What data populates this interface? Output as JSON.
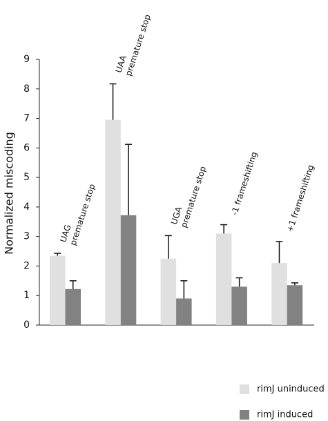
{
  "chart_data": {
    "type": "bar",
    "ylabel": "Normalized miscoding",
    "categories": [
      [
        "UAG",
        "premature stop"
      ],
      [
        "UAA",
        "premature stop"
      ],
      [
        "UGA",
        "premature stop"
      ],
      [
        "-1 frameshifting"
      ],
      [
        "+1 frameshifting"
      ]
    ],
    "series": [
      {
        "name": "rimJ uninduced",
        "color": "#e0e0e0",
        "values": [
          2.35,
          6.95,
          2.25,
          3.1,
          2.1
        ],
        "errors": [
          0.08,
          1.22,
          0.78,
          0.3,
          0.73
        ]
      },
      {
        "name": "rimJ induced",
        "color": "#828282",
        "values": [
          1.22,
          3.72,
          0.9,
          1.3,
          1.35
        ],
        "errors": [
          0.28,
          2.4,
          0.6,
          0.3,
          0.08
        ]
      }
    ],
    "ylim": [
      0,
      9
    ],
    "yticks": [
      0,
      1,
      2,
      3,
      4,
      5,
      6,
      7,
      8,
      9
    ],
    "legend": "bottom-right"
  }
}
